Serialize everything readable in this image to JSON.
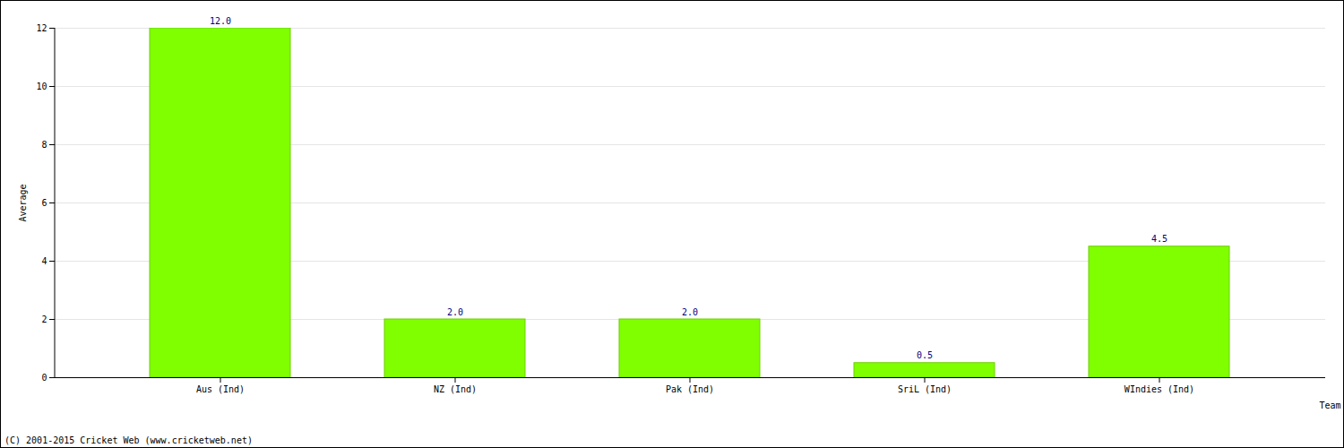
{
  "chart_data": {
    "type": "bar",
    "categories": [
      "Aus (Ind)",
      "NZ (Ind)",
      "Pak (Ind)",
      "SriL (Ind)",
      "WIndies (Ind)"
    ],
    "values": [
      12,
      2,
      2,
      0.5,
      4.5
    ],
    "value_labels": [
      "12.0",
      "2.0",
      "2.0",
      "0.5",
      "4.5"
    ],
    "data_labels": true,
    "color": "#7fff00",
    "x_label": "Team",
    "y_label": "Average",
    "ylim": [
      0,
      12
    ],
    "yticks": [
      0,
      2,
      4,
      6,
      8,
      10,
      12
    ],
    "grid": true,
    "caption": "(C) 2001-2015 Cricket Web (www.cricketweb.net)"
  }
}
